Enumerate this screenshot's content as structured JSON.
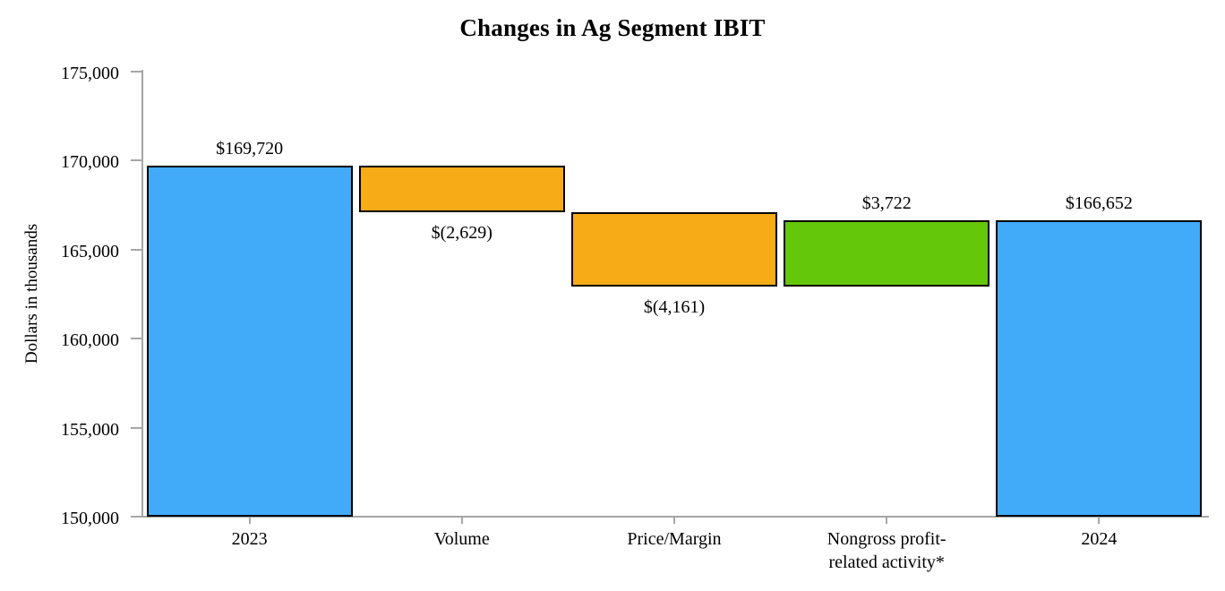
{
  "title": "Changes in Ag Segment IBIT",
  "chart_data": {
    "type": "bar",
    "subtype": "waterfall",
    "title": "Changes in Ag Segment IBIT",
    "xlabel": "",
    "ylabel": "Dollars in thousands",
    "ylim": [
      150000,
      175000
    ],
    "ytick_step": 5000,
    "grid": false,
    "legend": "none",
    "yticks": [
      {
        "value": 150000,
        "label": "150,000"
      },
      {
        "value": 155000,
        "label": "155,000"
      },
      {
        "value": 160000,
        "label": "160,000"
      },
      {
        "value": 165000,
        "label": "165,000"
      },
      {
        "value": 170000,
        "label": "170,000"
      },
      {
        "value": 175000,
        "label": "175,000"
      }
    ],
    "categories": [
      "2023",
      "Volume",
      "Price/Margin",
      "Nongross profit-\nrelated activity*",
      "2024"
    ],
    "bars": [
      {
        "category": "2023",
        "value": 169720,
        "value_label": "$169,720",
        "start": 150000,
        "end": 169720,
        "color_key": "total",
        "label_pos": "above"
      },
      {
        "category": "Volume",
        "value": -2629,
        "value_label": "$(2,629)",
        "start": 169720,
        "end": 167091,
        "color_key": "decrease",
        "label_pos": "below"
      },
      {
        "category": "Price/Margin",
        "value": -4161,
        "value_label": "$(4,161)",
        "start": 167091,
        "end": 162930,
        "color_key": "decrease",
        "label_pos": "below"
      },
      {
        "category": "Nongross profit-\nrelated activity*",
        "value": 3722,
        "value_label": "$3,722",
        "start": 162930,
        "end": 166652,
        "color_key": "increase",
        "label_pos": "above"
      },
      {
        "category": "2024",
        "value": 166652,
        "value_label": "$166,652",
        "start": 150000,
        "end": 166652,
        "color_key": "total",
        "label_pos": "above"
      }
    ],
    "colors": {
      "total": "#41ABFA",
      "decrease": "#F7AB17",
      "increase": "#65C70A",
      "bar_border": "#000000",
      "axis": "#A6A6A6",
      "text": "#000000"
    }
  }
}
